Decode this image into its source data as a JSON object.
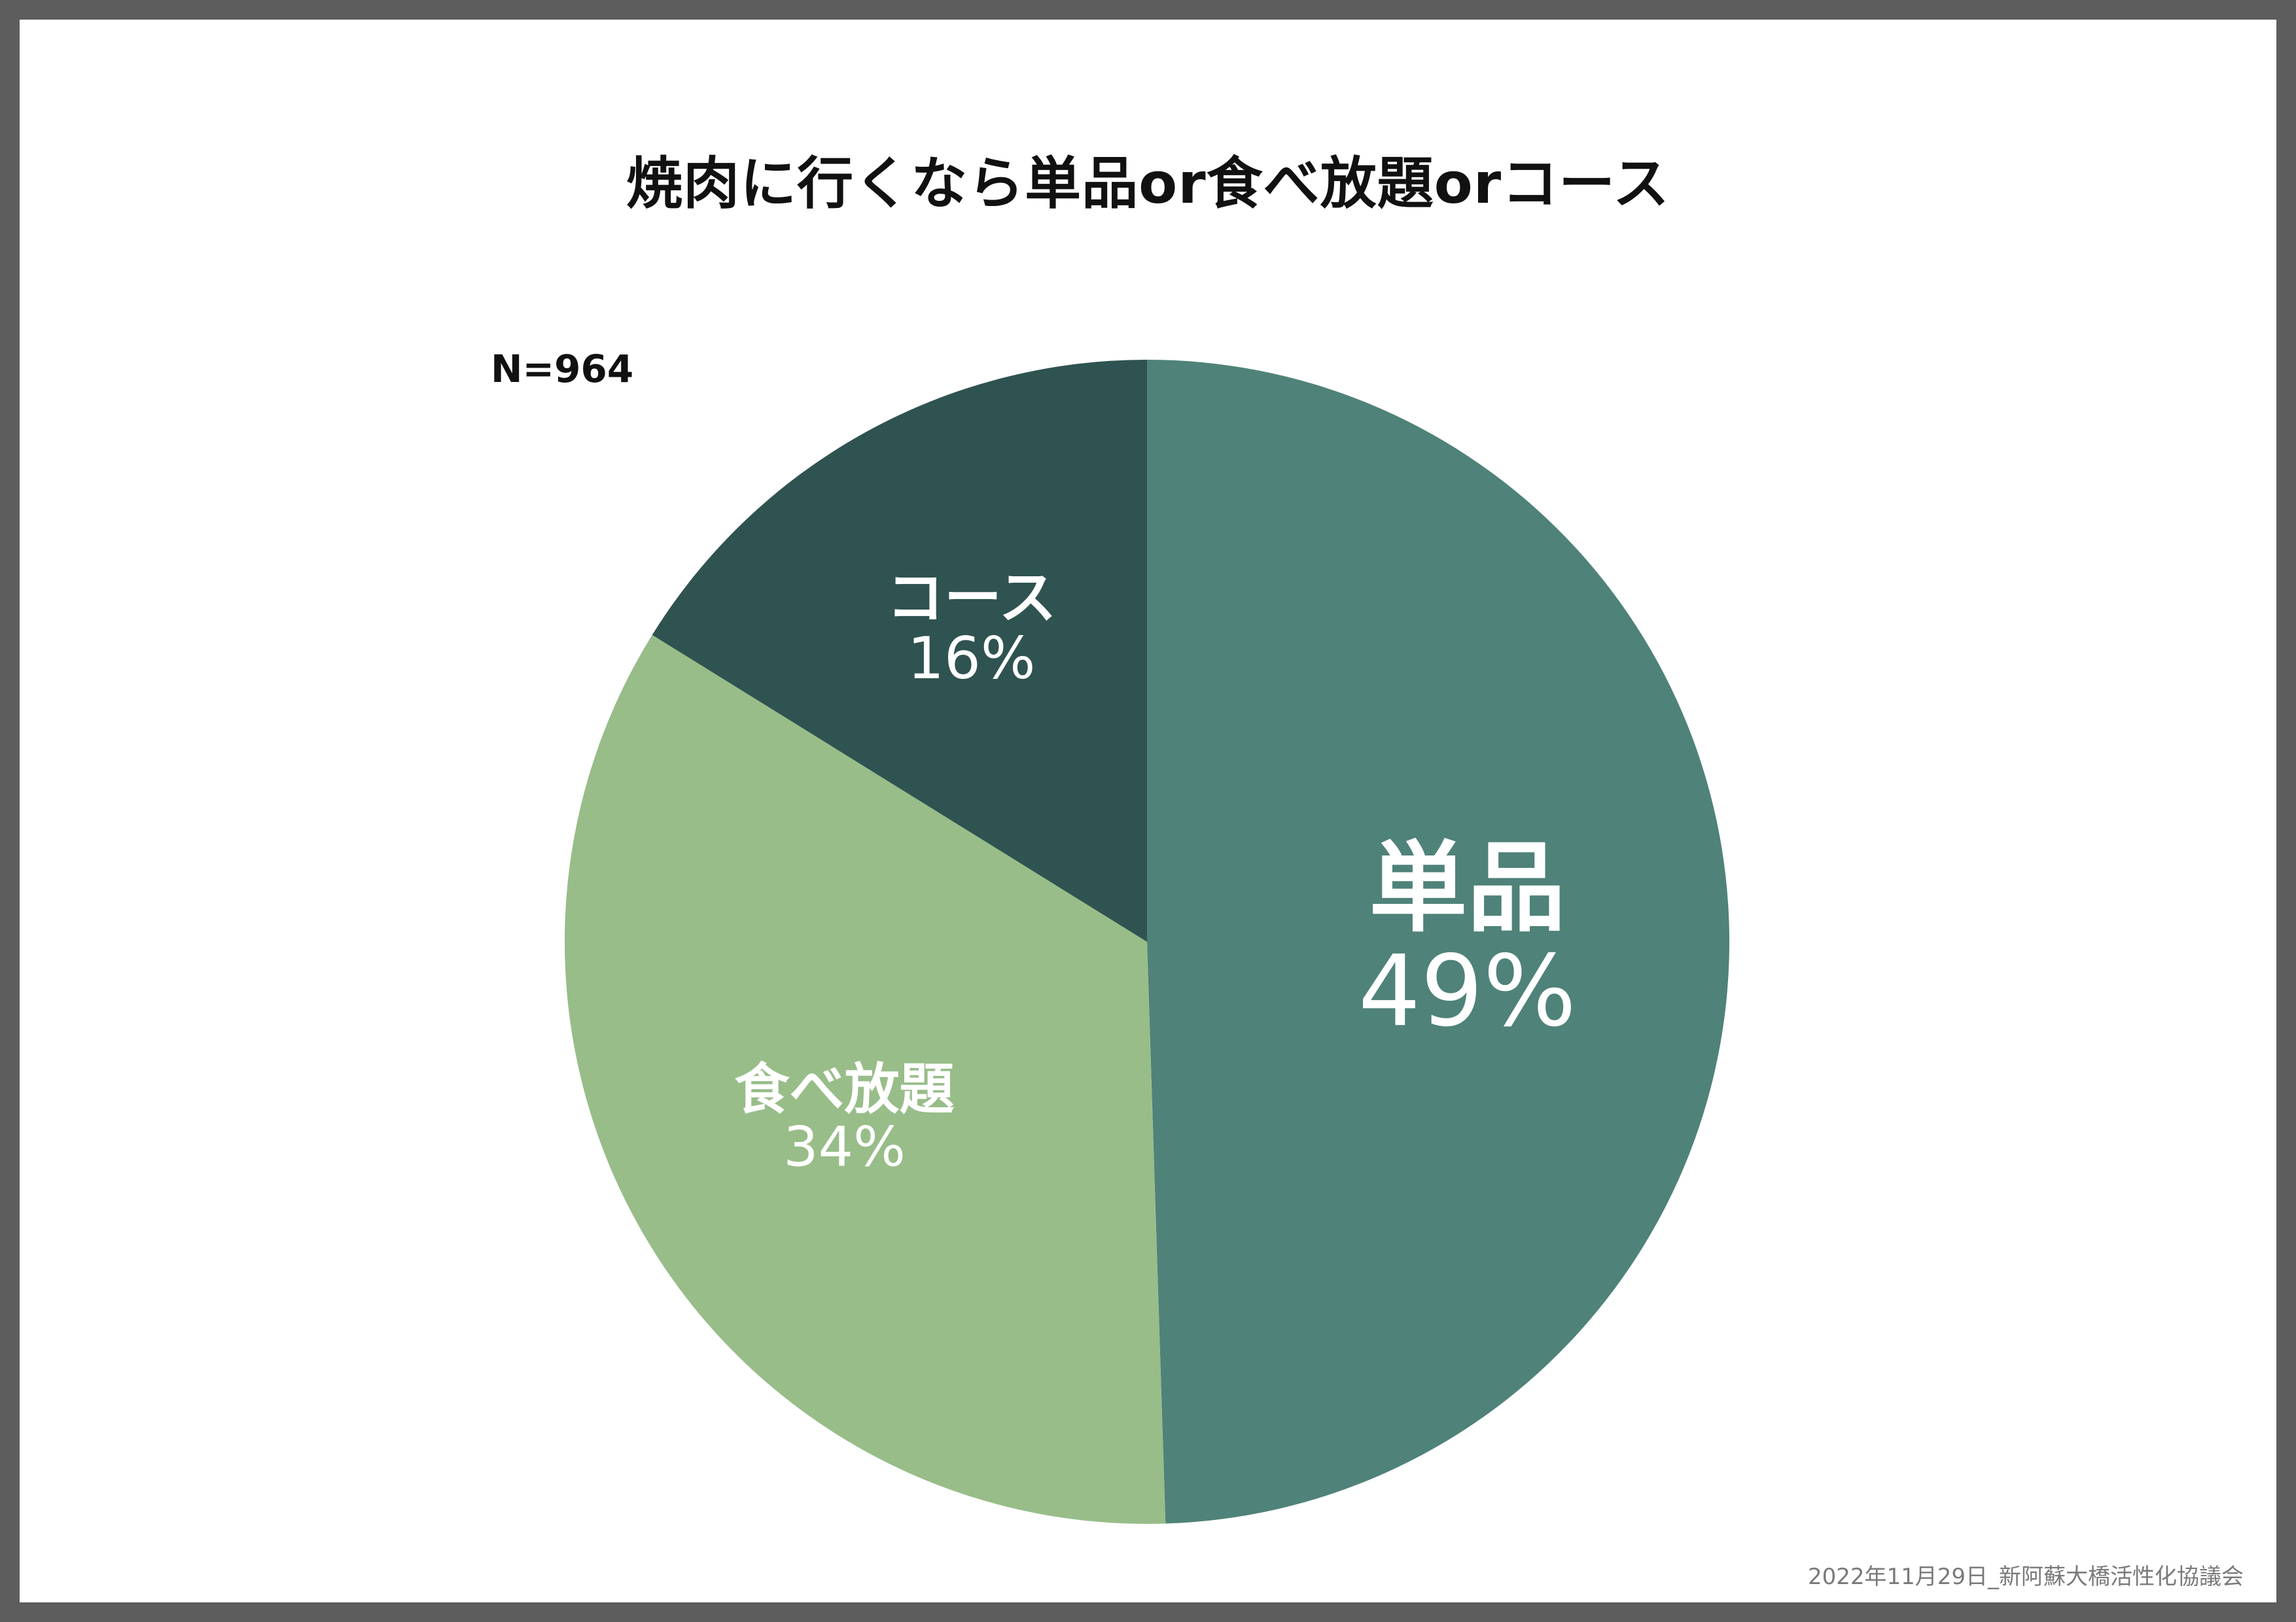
{
  "footer": "2022年11月29日_新阿蘇大橋活性化協議会",
  "chart_data": {
    "type": "pie",
    "title": "焼肉に行くなら単品or食べ放題orコース",
    "sample_size": "N=964",
    "start_angle_deg": 0,
    "direction": "clockwise",
    "slices": [
      {
        "label": "単品",
        "value": 49,
        "value_label": "49%",
        "color": "#4f8279"
      },
      {
        "label": "食べ放題",
        "value": 34,
        "value_label": "34%",
        "color": "#98bd89"
      },
      {
        "label": "コース",
        "value": 16,
        "value_label": "16%",
        "color": "#2f5350"
      }
    ]
  }
}
